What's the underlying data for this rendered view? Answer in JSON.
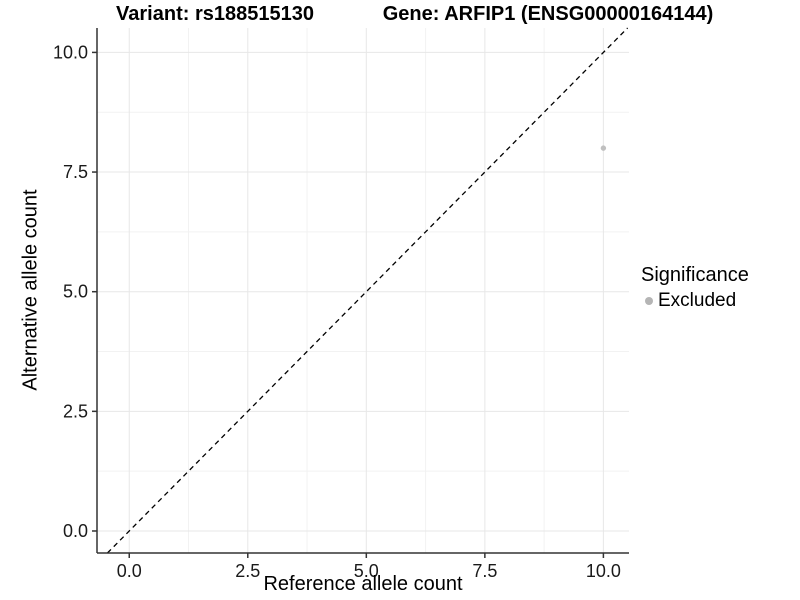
{
  "header": {
    "title_left": "Variant: rs188515130",
    "title_right": "Gene: ARFIP1 (ENSG00000164144)"
  },
  "chart_data": {
    "type": "scatter",
    "titles": [
      "Variant: rs188515130",
      "Gene: ARFIP1 (ENSG00000164144)"
    ],
    "xlabel": "Reference allele count",
    "ylabel": "Alternative allele count",
    "xlim": [
      -0.68,
      10.54
    ],
    "ylim": [
      -0.46,
      10.51
    ],
    "x_ticks": {
      "values": [
        0,
        2.5,
        5,
        7.5,
        10
      ],
      "labels": [
        "0.0",
        "2.5",
        "5.0",
        "7.5",
        "10.0"
      ]
    },
    "y_ticks": {
      "values": [
        0,
        2.5,
        5,
        7.5,
        10
      ],
      "labels": [
        "0.0",
        "2.5",
        "5.0",
        "7.5",
        "10.0"
      ]
    },
    "x_minor": [
      1.25,
      3.75,
      6.25,
      8.75
    ],
    "y_minor": [
      1.25,
      3.75,
      6.25,
      8.75
    ],
    "grid": true,
    "reference_line": {
      "kind": "identity y=x",
      "style": "dashed",
      "color": "#000000"
    },
    "series": [
      {
        "name": "Excluded",
        "color": "#c0c0c0",
        "points": [
          {
            "x": 10,
            "y": 8
          }
        ]
      }
    ],
    "legend": {
      "title": "Significance",
      "position": "right",
      "items": [
        {
          "label": "Excluded",
          "color": "#b5b5b5"
        }
      ]
    }
  },
  "colors": {
    "background": "#ffffff",
    "grid_major": "#e7e7e7",
    "grid_minor": "#f2f2f2",
    "axis": "#333333",
    "tick_label": "#1a1a1a"
  }
}
